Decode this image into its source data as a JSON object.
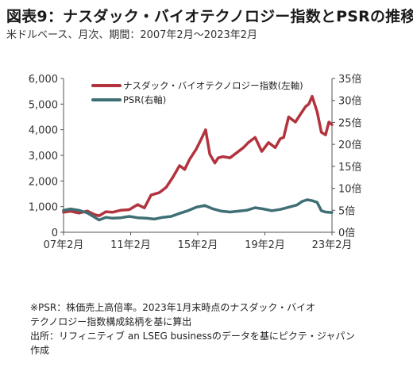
{
  "title": "図表9：ナスダック・バイオテクノロジー指数とPSRの推移",
  "subtitle": "米ドルベース、月次、期間：2007年2月～2023年2月",
  "notes": [
    "※PSR：株価売上高倍率。2023年1月末時点のナスダック・バイオ",
    "テクノロジー指数構成銘柄を基に算出",
    "出所：リフィニティブ an LSEG businessのデータを基にピクテ・ジャパン",
    "作成"
  ],
  "chart_data": {
    "type": "line",
    "title": "図表9：ナスダック・バイオテクノロジー指数とPSRの推移",
    "x_tick_labels": [
      "07年2月",
      "11年2月",
      "15年2月",
      "19年2月",
      "23年2月"
    ],
    "x_tick_positions": [
      2007.0833,
      2011.0833,
      2015.0833,
      2019.0833,
      2023.0833
    ],
    "xlim": [
      2007.0833,
      2023.0833
    ],
    "left_axis": {
      "ylim": [
        0,
        6000
      ],
      "ticks": [
        0,
        1000,
        2000,
        3000,
        4000,
        5000,
        6000
      ],
      "tick_labels": [
        "0",
        "1,000",
        "2,000",
        "3,000",
        "4,000",
        "5,000",
        "6,000"
      ]
    },
    "right_axis": {
      "ylim": [
        0,
        35
      ],
      "ticks": [
        0,
        5,
        10,
        15,
        20,
        25,
        30,
        35
      ],
      "tick_labels": [
        "0倍",
        "5倍",
        "10倍",
        "15倍",
        "20倍",
        "25倍",
        "30倍",
        "35倍"
      ]
    },
    "grid": false,
    "legend_position": "top-left",
    "series": [
      {
        "name": "ナスダック・バイオテクノロジー指数(左軸)",
        "axis": "left",
        "color": "#b2333e",
        "x": [
          2007.08,
          2007.5,
          2008.0,
          2008.5,
          2008.9,
          2009.2,
          2009.6,
          2010.0,
          2010.5,
          2011.0,
          2011.5,
          2011.9,
          2012.3,
          2012.8,
          2013.2,
          2013.6,
          2014.0,
          2014.3,
          2014.6,
          2015.0,
          2015.3,
          2015.55,
          2015.8,
          2016.1,
          2016.3,
          2016.6,
          2017.0,
          2017.4,
          2017.8,
          2018.1,
          2018.5,
          2018.9,
          2019.3,
          2019.7,
          2020.0,
          2020.2,
          2020.5,
          2020.9,
          2021.2,
          2021.5,
          2021.7,
          2021.9,
          2022.2,
          2022.45,
          2022.7,
          2022.9,
          2023.08
        ],
        "y": [
          780,
          820,
          750,
          830,
          700,
          640,
          800,
          780,
          860,
          880,
          1080,
          950,
          1450,
          1550,
          1750,
          2150,
          2600,
          2450,
          2850,
          3250,
          3650,
          4000,
          3050,
          2700,
          2900,
          2950,
          2900,
          3100,
          3300,
          3500,
          3700,
          3150,
          3500,
          3300,
          3650,
          3700,
          4500,
          4300,
          4600,
          4900,
          5000,
          5300,
          4700,
          3900,
          3800,
          4300,
          4200
        ]
      },
      {
        "name": "PSR(右軸)",
        "axis": "right",
        "color": "#3f6e74",
        "x": [
          2007.08,
          2007.5,
          2008.0,
          2008.5,
          2008.9,
          2009.2,
          2009.6,
          2010.0,
          2010.5,
          2011.0,
          2011.5,
          2012.0,
          2012.5,
          2013.0,
          2013.5,
          2014.0,
          2014.5,
          2015.0,
          2015.5,
          2016.0,
          2016.5,
          2017.0,
          2017.5,
          2018.0,
          2018.5,
          2019.0,
          2019.5,
          2020.0,
          2020.5,
          2021.0,
          2021.3,
          2021.6,
          2021.9,
          2022.2,
          2022.45,
          2022.7,
          2023.08
        ],
        "y": [
          5.0,
          5.3,
          5.0,
          4.4,
          3.5,
          2.8,
          3.4,
          3.2,
          3.3,
          3.6,
          3.3,
          3.2,
          3.0,
          3.4,
          3.6,
          4.3,
          4.9,
          5.7,
          6.1,
          5.3,
          4.8,
          4.6,
          4.8,
          5.0,
          5.6,
          5.3,
          4.9,
          5.2,
          5.7,
          6.2,
          7.0,
          7.4,
          7.2,
          6.8,
          4.9,
          4.6,
          4.5
        ]
      }
    ]
  }
}
